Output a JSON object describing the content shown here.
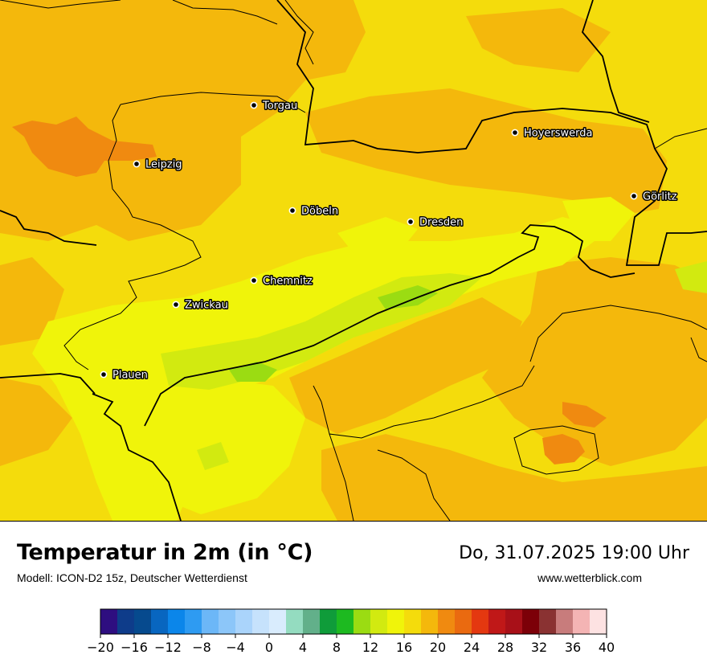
{
  "header": {
    "title": "Temperatur in 2m (in °C)",
    "model": "Modell: ICON-D2 15z, Deutscher Wetterdienst",
    "datetime": "Do, 31.07.2025 19:00 Uhr",
    "website": "www.wetterblick.com"
  },
  "cities": [
    {
      "name": "Torgau"
    },
    {
      "name": "Hoyerswerda"
    },
    {
      "name": "Leipzig"
    },
    {
      "name": "Görlitz"
    },
    {
      "name": "Döbeln"
    },
    {
      "name": "Dresden"
    },
    {
      "name": "Chemnitz"
    },
    {
      "name": "Zwickau"
    },
    {
      "name": "Plauen"
    }
  ],
  "legend": {
    "unit": "°C",
    "tick_labels": [
      "−20",
      "−16",
      "−12",
      "−8",
      "−4",
      "0",
      "4",
      "8",
      "12",
      "16",
      "20",
      "24",
      "28",
      "32",
      "36",
      "40"
    ],
    "min": -20,
    "max": 40,
    "step": 2,
    "colors": [
      "#2e0e80",
      "#0e3c8a",
      "#064a8e",
      "#0866c0",
      "#0b86ea",
      "#2e9bf2",
      "#6cb7f7",
      "#8cc6f9",
      "#aad4fb",
      "#c6e2fc",
      "#d9ecfd",
      "#94dcc0",
      "#62b08a",
      "#0f9c3a",
      "#1dba20",
      "#9bdc12",
      "#d2ea10",
      "#f0f40a",
      "#f4dc0c",
      "#f4b80c",
      "#f08a10",
      "#ea6a10",
      "#e43810",
      "#c01818",
      "#a81018",
      "#7c0008",
      "#8a3232",
      "#c87c7c",
      "#f4b4b4",
      "#fde2e2"
    ]
  },
  "map_colors": {
    "t18": "#f4dc0c",
    "t20": "#f4b80c",
    "t22": "#f08a10",
    "t16": "#f0f40a",
    "t14": "#d2ea10",
    "t12": "#9bdc12"
  }
}
